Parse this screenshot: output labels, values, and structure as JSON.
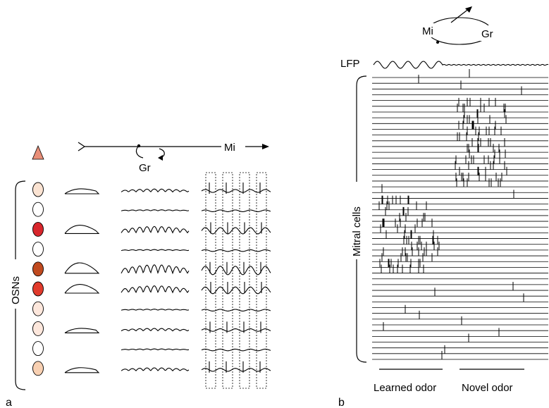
{
  "panel_a": {
    "label": "a",
    "osn_label": "OSNs",
    "mitral_label": "Mi",
    "granule_label": "Gr",
    "receptor_color": "#e88e78",
    "osn_cells": [
      {
        "fill": "#fbe3d2"
      },
      {
        "fill": "#ffffff"
      },
      {
        "fill": "#d8262c"
      },
      {
        "fill": "#ffffff"
      },
      {
        "fill": "#c04a1f"
      },
      {
        "fill": "#e13b2c"
      },
      {
        "fill": "#fde7dc"
      },
      {
        "fill": "#fde7dc"
      },
      {
        "fill": "#ffffff"
      },
      {
        "fill": "#f8d0b2"
      }
    ]
  },
  "panel_b": {
    "label": "b",
    "lfp_label": "LFP",
    "mitral_label": "Mi",
    "granule_label": "Gr",
    "mitral_cells_label": "Mitral cells",
    "learned_label": "Learned odor",
    "novel_label": "Novel odor"
  }
}
